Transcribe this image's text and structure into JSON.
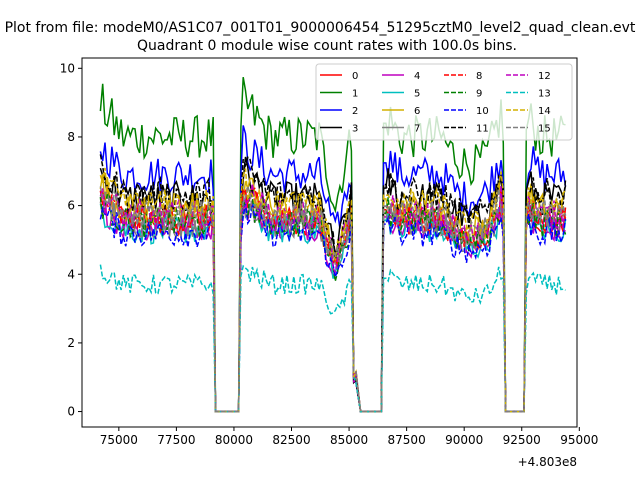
{
  "figure": {
    "suptitle": "Plot from file: modeM0/AS1C07_001T01_9000006454_51295cztM0_level2_quad_clean.evt",
    "offset_label": "+4.803e8"
  },
  "colors": {
    "0": "#ff0000",
    "1": "#008000",
    "2": "#0000ff",
    "3": "#000000",
    "4": "#bf00bf",
    "5": "#00bfbf",
    "6": "#d4b000",
    "7": "#808080"
  },
  "chart_data": {
    "type": "line",
    "title": "Quadrant 0 module wise count rates with 100.0s bins.",
    "xlabel": "",
    "ylabel": "",
    "x_offset": 480300000,
    "xlim": [
      73400,
      94900
    ],
    "ylim": [
      -0.45,
      10.3
    ],
    "xticks": [
      75000,
      77500,
      80000,
      82500,
      85000,
      87500,
      90000,
      92500,
      95000
    ],
    "xtick_labels": [
      "75000",
      "77500",
      "80000",
      "82500",
      "85000",
      "87500",
      "90000",
      "92500",
      "95000"
    ],
    "yticks": [
      0,
      2,
      4,
      6,
      8,
      10
    ],
    "ytick_labels": [
      "0",
      "2",
      "4",
      "6",
      "8",
      "10"
    ],
    "grid": false,
    "legend_placement": "top-right",
    "legend_ncol": 4,
    "gaps_zero": [
      [
        79200,
        80200
      ],
      [
        85500,
        86400
      ],
      [
        91800,
        92600
      ]
    ],
    "segments": [
      [
        74200,
        79100
      ],
      [
        80300,
        85300
      ],
      [
        86500,
        91700
      ],
      [
        92700,
        94400
      ]
    ],
    "approx_levels": {
      "0": 5.6,
      "1": 8.0,
      "2": 6.9,
      "3": 6.2,
      "4": 5.4,
      "5": 5.3,
      "6": 5.9,
      "7": 5.5,
      "8": 5.6,
      "9": 5.5,
      "10": 5.2,
      "11": 6.3,
      "12": 5.7,
      "13": 3.7,
      "14": 6.0,
      "15": 5.7
    },
    "series": [
      {
        "name": "0",
        "color": "#ff0000",
        "style": "solid"
      },
      {
        "name": "1",
        "color": "#008000",
        "style": "solid"
      },
      {
        "name": "2",
        "color": "#0000ff",
        "style": "solid"
      },
      {
        "name": "3",
        "color": "#000000",
        "style": "solid"
      },
      {
        "name": "4",
        "color": "#bf00bf",
        "style": "solid"
      },
      {
        "name": "5",
        "color": "#00bfbf",
        "style": "solid"
      },
      {
        "name": "6",
        "color": "#d4b000",
        "style": "solid"
      },
      {
        "name": "7",
        "color": "#808080",
        "style": "solid"
      },
      {
        "name": "8",
        "color": "#ff0000",
        "style": "dashed"
      },
      {
        "name": "9",
        "color": "#008000",
        "style": "dashed"
      },
      {
        "name": "10",
        "color": "#0000ff",
        "style": "dashed"
      },
      {
        "name": "11",
        "color": "#000000",
        "style": "dashed"
      },
      {
        "name": "12",
        "color": "#bf00bf",
        "style": "dashed"
      },
      {
        "name": "13",
        "color": "#00bfbf",
        "style": "dashed"
      },
      {
        "name": "14",
        "color": "#d4b000",
        "style": "dashed"
      },
      {
        "name": "15",
        "color": "#808080",
        "style": "dashed"
      }
    ]
  }
}
